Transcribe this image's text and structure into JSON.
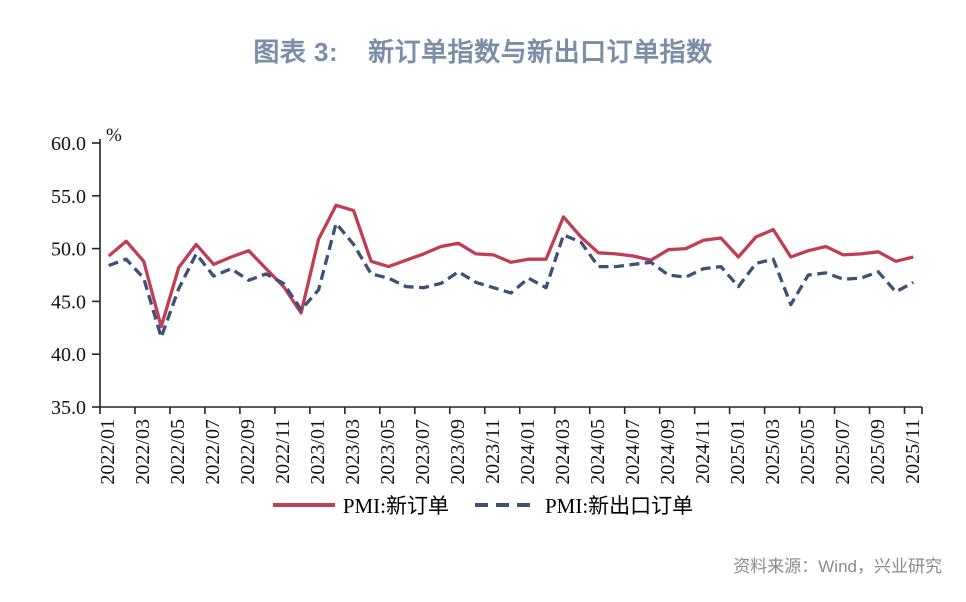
{
  "title": {
    "prefix": "图表 3:",
    "main": "新订单指数与新出口订单指数",
    "color": "#7A8EA8"
  },
  "source": {
    "text": "资料来源：Wind，兴业研究",
    "color": "#8A8A8A"
  },
  "axis_color": "#262626",
  "chart_data": {
    "type": "line",
    "title": "新订单指数与新出口订单指数",
    "unit": "%",
    "ylim": [
      35.0,
      60.0
    ],
    "ytick_step": 5.0,
    "ytick_labels": [
      "35.0",
      "40.0",
      "45.0",
      "50.0",
      "55.0",
      "60.0"
    ],
    "xtick_every": 2,
    "grid": false,
    "legend_position": "bottom",
    "x": [
      "2022/01",
      "2022/02",
      "2022/03",
      "2022/04",
      "2022/05",
      "2022/06",
      "2022/07",
      "2022/08",
      "2022/09",
      "2022/10",
      "2022/11",
      "2022/12",
      "2023/01",
      "2023/02",
      "2023/03",
      "2023/04",
      "2023/05",
      "2023/06",
      "2023/07",
      "2023/08",
      "2023/09",
      "2023/10",
      "2023/11",
      "2023/12",
      "2024/01",
      "2024/02",
      "2024/03",
      "2024/04",
      "2024/05",
      "2024/06",
      "2024/07",
      "2024/08",
      "2024/09",
      "2024/10",
      "2024/11",
      "2024/12",
      "2025/01",
      "2025/02",
      "2025/03",
      "2025/04",
      "2025/05",
      "2025/06",
      "2025/07",
      "2025/08",
      "2025/09",
      "2025/10",
      "2025/11"
    ],
    "series": [
      {
        "name": "PMI:新订单",
        "style": "solid",
        "color": "#C03E55",
        "values": [
          49.3,
          50.7,
          48.8,
          42.6,
          48.2,
          50.4,
          48.5,
          49.2,
          49.8,
          48.1,
          46.4,
          43.9,
          50.9,
          54.1,
          53.6,
          48.8,
          48.3,
          48.9,
          49.5,
          50.2,
          50.5,
          49.5,
          49.4,
          48.7,
          49.0,
          49.0,
          53.0,
          51.1,
          49.6,
          49.5,
          49.3,
          48.9,
          49.9,
          50.0,
          50.8,
          51.0,
          49.2,
          51.1,
          51.8,
          49.2,
          49.8,
          50.2,
          49.4,
          49.5,
          49.7,
          48.8,
          49.2
        ]
      },
      {
        "name": "PMI:新出口订单",
        "style": "dashed",
        "color": "#3D5077",
        "values": [
          48.4,
          49.0,
          47.2,
          41.6,
          46.2,
          49.5,
          47.4,
          48.1,
          47.0,
          47.6,
          46.7,
          44.2,
          46.1,
          52.4,
          50.4,
          47.6,
          47.2,
          46.4,
          46.3,
          46.7,
          47.8,
          46.8,
          46.3,
          45.8,
          47.2,
          46.3,
          51.3,
          50.6,
          48.3,
          48.3,
          48.5,
          48.7,
          47.5,
          47.3,
          48.1,
          48.3,
          46.4,
          48.6,
          49.0,
          44.7,
          47.5,
          47.7,
          47.1,
          47.2,
          47.8,
          45.9,
          46.8
        ]
      }
    ]
  }
}
